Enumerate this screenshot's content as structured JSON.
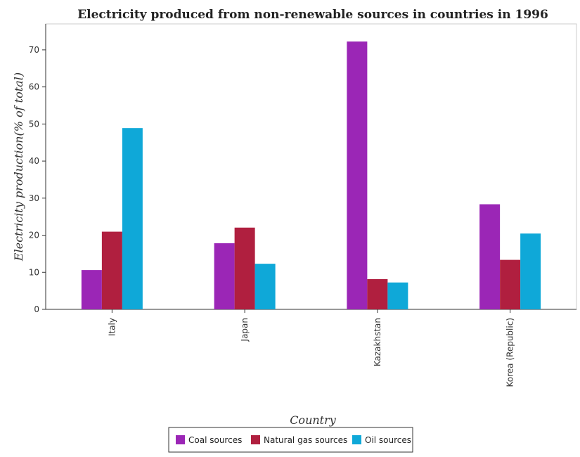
{
  "chart_data": {
    "type": "bar",
    "title": "Electricity produced from non-renewable sources in countries in 1996",
    "xlabel": "Country",
    "ylabel": "Electricity production(% of total)",
    "categories": [
      "Italy",
      "Japan",
      "Kazakhstan",
      "Korea (Republic)"
    ],
    "series": [
      {
        "name": "Coal sources",
        "color": "#9b26b6",
        "values": [
          10.6,
          17.85,
          72.25,
          28.35
        ]
      },
      {
        "name": "Natural gas sources",
        "color": "#b01f3f",
        "values": [
          20.95,
          22.05,
          8.15,
          13.35
        ]
      },
      {
        "name": "Oil sources",
        "color": "#0fa8d8",
        "values": [
          48.9,
          12.3,
          7.25,
          20.45
        ]
      }
    ],
    "ylim": [
      0,
      77
    ],
    "yticks": [
      "0",
      "10",
      "20",
      "30",
      "40",
      "50",
      "60",
      "70"
    ],
    "grid": false,
    "legend_position": "bottom-center"
  }
}
